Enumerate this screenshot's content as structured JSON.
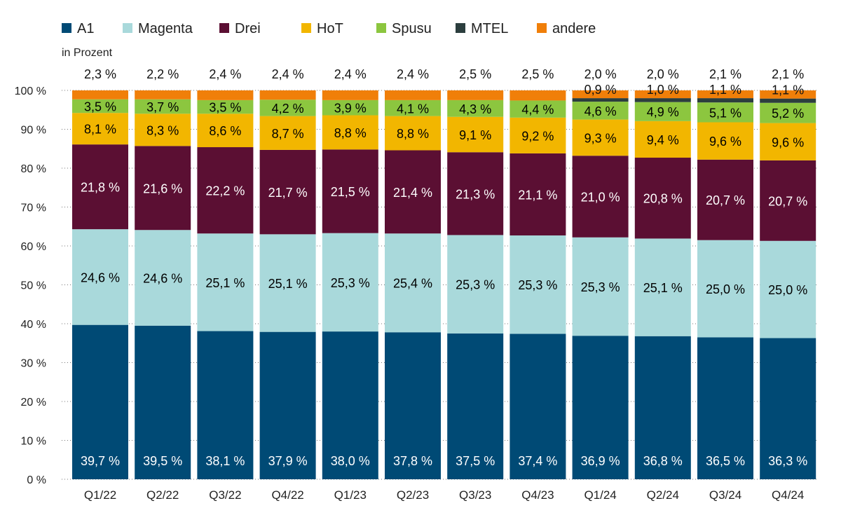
{
  "legend": [
    {
      "name": "A1",
      "color": "#004a75"
    },
    {
      "name": "Magenta",
      "color": "#a9d9db"
    },
    {
      "name": "Drei",
      "color": "#5b0f33"
    },
    {
      "name": "HoT",
      "color": "#f2b600"
    },
    {
      "name": "Spusu",
      "color": "#8cc63f"
    },
    {
      "name": "MTEL",
      "color": "#2c3e3e"
    },
    {
      "name": "andere",
      "color": "#f07f09"
    }
  ],
  "unit_label": "in Prozent",
  "chart_data": {
    "type": "bar",
    "stacked": true,
    "categories": [
      "Q1/22",
      "Q2/22",
      "Q3/22",
      "Q4/22",
      "Q1/23",
      "Q2/23",
      "Q3/23",
      "Q4/23",
      "Q1/24",
      "Q2/24",
      "Q3/24",
      "Q4/24"
    ],
    "ylim": [
      0,
      100
    ],
    "yticks": [
      "0 %",
      "10 %",
      "20 %",
      "30 %",
      "40 %",
      "50 %",
      "60 %",
      "70 %",
      "80 %",
      "90 %",
      "100 %"
    ],
    "grid": "horizontal-dotted",
    "legend_position": "top-left",
    "series": [
      {
        "name": "A1",
        "color": "#004a75",
        "label_color": "#ffffff",
        "values": [
          39.7,
          39.5,
          38.1,
          37.9,
          38.0,
          37.8,
          37.5,
          37.4,
          36.9,
          36.8,
          36.5,
          36.3
        ],
        "labels": [
          "39,7 %",
          "39,5 %",
          "38,1 %",
          "37,9 %",
          "38,0 %",
          "37,8 %",
          "37,5 %",
          "37,4 %",
          "36,9 %",
          "36,8 %",
          "36,5 %",
          "36,3 %"
        ]
      },
      {
        "name": "Magenta",
        "color": "#a9d9db",
        "label_color": "#000000",
        "values": [
          24.6,
          24.6,
          25.1,
          25.1,
          25.3,
          25.4,
          25.3,
          25.3,
          25.3,
          25.1,
          25.0,
          25.0
        ],
        "labels": [
          "24,6 %",
          "24,6 %",
          "25,1 %",
          "25,1 %",
          "25,3 %",
          "25,4 %",
          "25,3 %",
          "25,3 %",
          "25,3 %",
          "25,1 %",
          "25,0 %",
          "25,0 %"
        ]
      },
      {
        "name": "Drei",
        "color": "#5b0f33",
        "label_color": "#ffffff",
        "values": [
          21.8,
          21.6,
          22.2,
          21.7,
          21.5,
          21.4,
          21.3,
          21.1,
          21.0,
          20.8,
          20.7,
          20.7
        ],
        "labels": [
          "21,8 %",
          "21,6 %",
          "22,2 %",
          "21,7 %",
          "21,5 %",
          "21,4 %",
          "21,3 %",
          "21,1 %",
          "21,0 %",
          "20,8 %",
          "20,7 %",
          "20,7 %"
        ]
      },
      {
        "name": "HoT",
        "color": "#f2b600",
        "label_color": "#000000",
        "values": [
          8.1,
          8.3,
          8.6,
          8.7,
          8.8,
          8.8,
          9.1,
          9.2,
          9.3,
          9.4,
          9.6,
          9.6
        ],
        "labels": [
          "8,1 %",
          "8,3 %",
          "8,6 %",
          "8,7 %",
          "8,8 %",
          "8,8 %",
          "9,1 %",
          "9,2 %",
          "9,3 %",
          "9,4 %",
          "9,6 %",
          "9,6 %"
        ]
      },
      {
        "name": "Spusu",
        "color": "#8cc63f",
        "label_color": "#000000",
        "values": [
          3.5,
          3.7,
          3.5,
          4.2,
          3.9,
          4.1,
          4.3,
          4.4,
          4.6,
          4.9,
          5.1,
          5.2
        ],
        "labels": [
          "3,5 %",
          "3,7 %",
          "3,5 %",
          "4,2 %",
          "3,9 %",
          "4,1 %",
          "4,3 %",
          "4,4 %",
          "4,6 %",
          "4,9 %",
          "5,1 %",
          "5,2 %"
        ]
      },
      {
        "name": "MTEL",
        "color": "#2c3e3e",
        "label_color": "#000000",
        "values": [
          0,
          0,
          0,
          0,
          0,
          0,
          0,
          0,
          0.9,
          1.0,
          1.1,
          1.1
        ],
        "labels": [
          "",
          "",
          "",
          "",
          "",
          "",
          "",
          "",
          "0,9 %",
          "1,0 %",
          "1,1 %",
          "1,1 %"
        ]
      },
      {
        "name": "andere",
        "color": "#f07f09",
        "label_color": "#000000",
        "values": [
          2.3,
          2.2,
          2.4,
          2.4,
          2.4,
          2.4,
          2.5,
          2.5,
          2.0,
          2.0,
          2.1,
          2.1
        ],
        "labels": [
          "2,3 %",
          "2,2 %",
          "2,4 %",
          "2,4 %",
          "2,4 %",
          "2,4 %",
          "2,5 %",
          "2,5 %",
          "2,0 %",
          "2,0 %",
          "2,1 %",
          "2,1 %"
        ]
      }
    ]
  }
}
